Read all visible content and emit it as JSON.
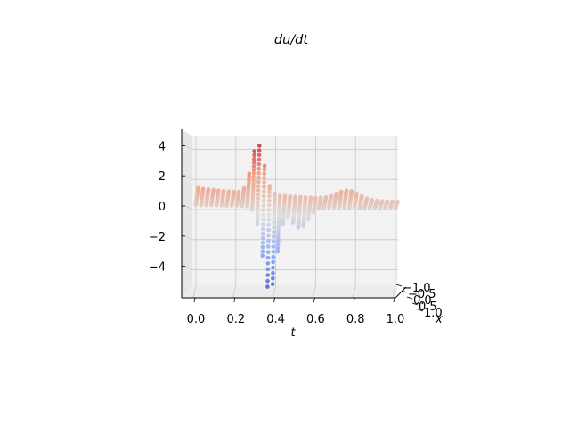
{
  "chart_data": {
    "type": "scatter",
    "subtype": "3d-scatter",
    "title": "du/dt",
    "xlabel": "t",
    "ylabel": "x",
    "zlabel": "",
    "x_ticks": [
      "0.0",
      "0.2",
      "0.4",
      "0.6",
      "0.8",
      "1.0"
    ],
    "y_ticks": [
      "−1.0",
      "−0.5",
      "0.0",
      "0.5",
      "1.0"
    ],
    "z_ticks": [
      "4",
      "2",
      "0",
      "−2",
      "−4"
    ],
    "xlim": [
      -0.05,
      1.05
    ],
    "ylim": [
      -1.0,
      1.0
    ],
    "zlim": [
      -5.8,
      5.1
    ],
    "grid": true,
    "colormap": "coolwarm",
    "colors": {
      "pane": "#f2f2f2",
      "grid": "#c8c8c8",
      "axis": "#000000",
      "low": "#3b4cc0",
      "mid": "#dddddd",
      "high": "#b40426"
    },
    "surface": {
      "description_values": "du/dt over t in [0,1] and x in [-1,1]; baseline ≈ 1.3 near t=0 decaying to ≈ 0.5; sharp positive peak ≈ 4.4 near t≈0.3; negative trough ≈ -4.7 near t≈0.37; secondary ripple near t≈0.75",
      "t_samples": 40,
      "x_samples": 21
    }
  }
}
